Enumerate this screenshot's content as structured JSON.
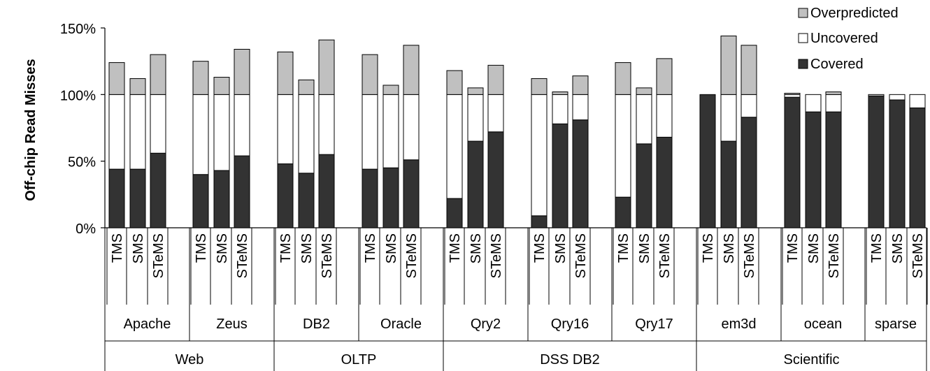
{
  "chart_data": {
    "type": "bar",
    "stacked": true,
    "ylabel": "Off-chip Read Misses",
    "ylim": [
      0,
      150
    ],
    "yticks": [
      0,
      50,
      100,
      150
    ],
    "ytick_format": "{v}%",
    "colors": {
      "Covered": "#333333",
      "Uncovered": "#ffffff",
      "Overpredicted": "#c0c0c0"
    },
    "legend_position": "top-right",
    "legend": [
      "Overpredicted",
      "Uncovered",
      "Covered"
    ],
    "categories": [
      "TMS",
      "SMS",
      "STeMS"
    ],
    "benchmarks": [
      {
        "name": "Apache",
        "group": "Web",
        "bars": [
          {
            "label": "TMS",
            "covered": 44,
            "uncovered": 56,
            "overpredicted": 24
          },
          {
            "label": "SMS",
            "covered": 44,
            "uncovered": 56,
            "overpredicted": 12
          },
          {
            "label": "STeMS",
            "covered": 56,
            "uncovered": 44,
            "overpredicted": 30
          }
        ]
      },
      {
        "name": "Zeus",
        "group": "Web",
        "bars": [
          {
            "label": "TMS",
            "covered": 40,
            "uncovered": 60,
            "overpredicted": 25
          },
          {
            "label": "SMS",
            "covered": 43,
            "uncovered": 57,
            "overpredicted": 13
          },
          {
            "label": "STeMS",
            "covered": 54,
            "uncovered": 46,
            "overpredicted": 34
          }
        ]
      },
      {
        "name": "DB2",
        "group": "OLTP",
        "bars": [
          {
            "label": "TMS",
            "covered": 48,
            "uncovered": 52,
            "overpredicted": 32
          },
          {
            "label": "SMS",
            "covered": 41,
            "uncovered": 59,
            "overpredicted": 11
          },
          {
            "label": "STeMS",
            "covered": 55,
            "uncovered": 45,
            "overpredicted": 41
          }
        ]
      },
      {
        "name": "Oracle",
        "group": "OLTP",
        "bars": [
          {
            "label": "TMS",
            "covered": 44,
            "uncovered": 56,
            "overpredicted": 30
          },
          {
            "label": "SMS",
            "covered": 45,
            "uncovered": 55,
            "overpredicted": 7
          },
          {
            "label": "STeMS",
            "covered": 51,
            "uncovered": 49,
            "overpredicted": 37
          }
        ]
      },
      {
        "name": "Qry2",
        "group": "DSS DB2",
        "bars": [
          {
            "label": "TMS",
            "covered": 22,
            "uncovered": 78,
            "overpredicted": 18
          },
          {
            "label": "SMS",
            "covered": 65,
            "uncovered": 35,
            "overpredicted": 5
          },
          {
            "label": "STeMS",
            "covered": 72,
            "uncovered": 28,
            "overpredicted": 22
          }
        ]
      },
      {
        "name": "Qry16",
        "group": "DSS DB2",
        "bars": [
          {
            "label": "TMS",
            "covered": 9,
            "uncovered": 91,
            "overpredicted": 12
          },
          {
            "label": "SMS",
            "covered": 78,
            "uncovered": 22,
            "overpredicted": 2
          },
          {
            "label": "STeMS",
            "covered": 81,
            "uncovered": 19,
            "overpredicted": 14
          }
        ]
      },
      {
        "name": "Qry17",
        "group": "DSS DB2",
        "bars": [
          {
            "label": "TMS",
            "covered": 23,
            "uncovered": 77,
            "overpredicted": 24
          },
          {
            "label": "SMS",
            "covered": 63,
            "uncovered": 37,
            "overpredicted": 5
          },
          {
            "label": "STeMS",
            "covered": 68,
            "uncovered": 32,
            "overpredicted": 27
          }
        ]
      },
      {
        "name": "em3d",
        "group": "Scientific",
        "bars": [
          {
            "label": "TMS",
            "covered": 100,
            "uncovered": 0,
            "overpredicted": 0
          },
          {
            "label": "SMS",
            "covered": 65,
            "uncovered": 35,
            "overpredicted": 44
          },
          {
            "label": "STeMS",
            "covered": 83,
            "uncovered": 17,
            "overpredicted": 37
          }
        ]
      },
      {
        "name": "ocean",
        "group": "Scientific",
        "bars": [
          {
            "label": "TMS",
            "covered": 98,
            "uncovered": 2,
            "overpredicted": 1
          },
          {
            "label": "SMS",
            "covered": 87,
            "uncovered": 13,
            "overpredicted": 0
          },
          {
            "label": "STeMS",
            "covered": 87,
            "uncovered": 13,
            "overpredicted": 2
          }
        ]
      },
      {
        "name": "sparse",
        "group": "Scientific",
        "bars": [
          {
            "label": "TMS",
            "covered": 99,
            "uncovered": 1,
            "overpredicted": 0
          },
          {
            "label": "SMS",
            "covered": 96,
            "uncovered": 4,
            "overpredicted": 0
          },
          {
            "label": "STeMS",
            "covered": 90,
            "uncovered": 10,
            "overpredicted": 0
          }
        ]
      }
    ],
    "groups": [
      {
        "name": "Web",
        "benchmarks": [
          "Apache",
          "Zeus"
        ]
      },
      {
        "name": "OLTP",
        "benchmarks": [
          "DB2",
          "Oracle"
        ]
      },
      {
        "name": "DSS DB2",
        "benchmarks": [
          "Qry2",
          "Qry16",
          "Qry17"
        ]
      },
      {
        "name": "Scientific",
        "benchmarks": [
          "em3d",
          "ocean",
          "sparse"
        ]
      }
    ]
  }
}
